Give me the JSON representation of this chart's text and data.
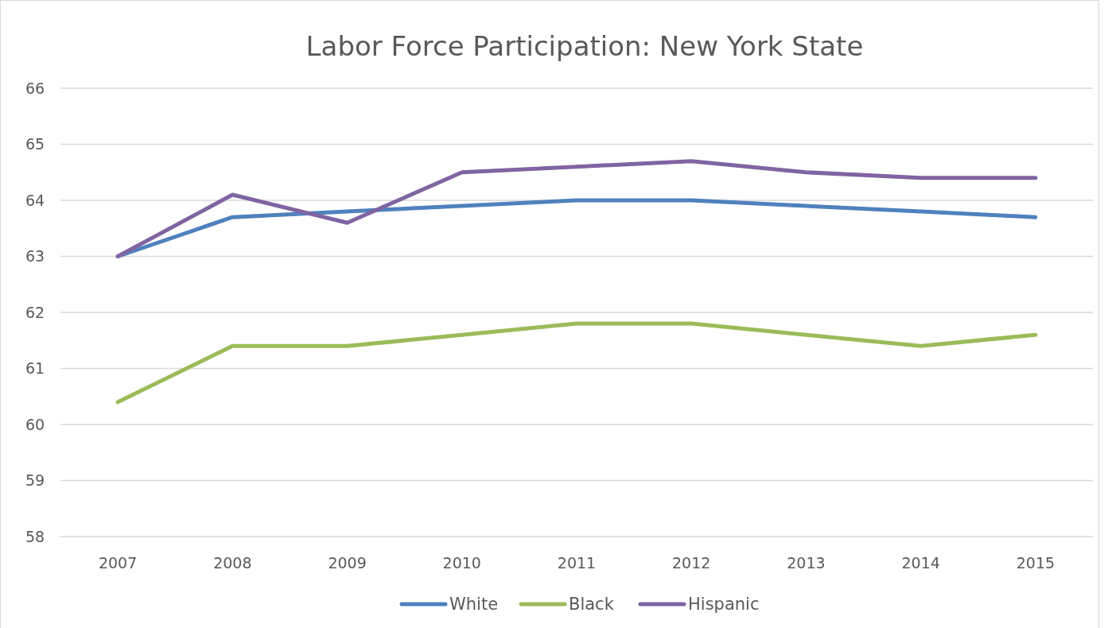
{
  "chart_data": {
    "type": "line",
    "title": "Labor Force Participation: New York State",
    "categories": [
      "2007",
      "2008",
      "2009",
      "2010",
      "2011",
      "2012",
      "2013",
      "2014",
      "2015"
    ],
    "series": [
      {
        "name": "White",
        "color": "#4f81bd",
        "values": [
          63.0,
          63.7,
          63.8,
          63.9,
          64.0,
          64.0,
          63.9,
          63.8,
          63.7
        ]
      },
      {
        "name": "Black",
        "color": "#9bbb59",
        "values": [
          60.4,
          61.4,
          61.4,
          61.6,
          61.8,
          61.8,
          61.6,
          61.4,
          61.6
        ]
      },
      {
        "name": "Hispanic",
        "color": "#8064a2",
        "values": [
          63.0,
          64.1,
          63.6,
          64.5,
          64.6,
          64.7,
          64.5,
          64.4,
          64.4
        ]
      }
    ],
    "ylim": [
      58,
      66
    ],
    "yticks": [
      58,
      59,
      60,
      61,
      62,
      63,
      64,
      65,
      66
    ],
    "grid": "y",
    "legend": "bottom",
    "marker": "none",
    "line_style": "solid"
  }
}
